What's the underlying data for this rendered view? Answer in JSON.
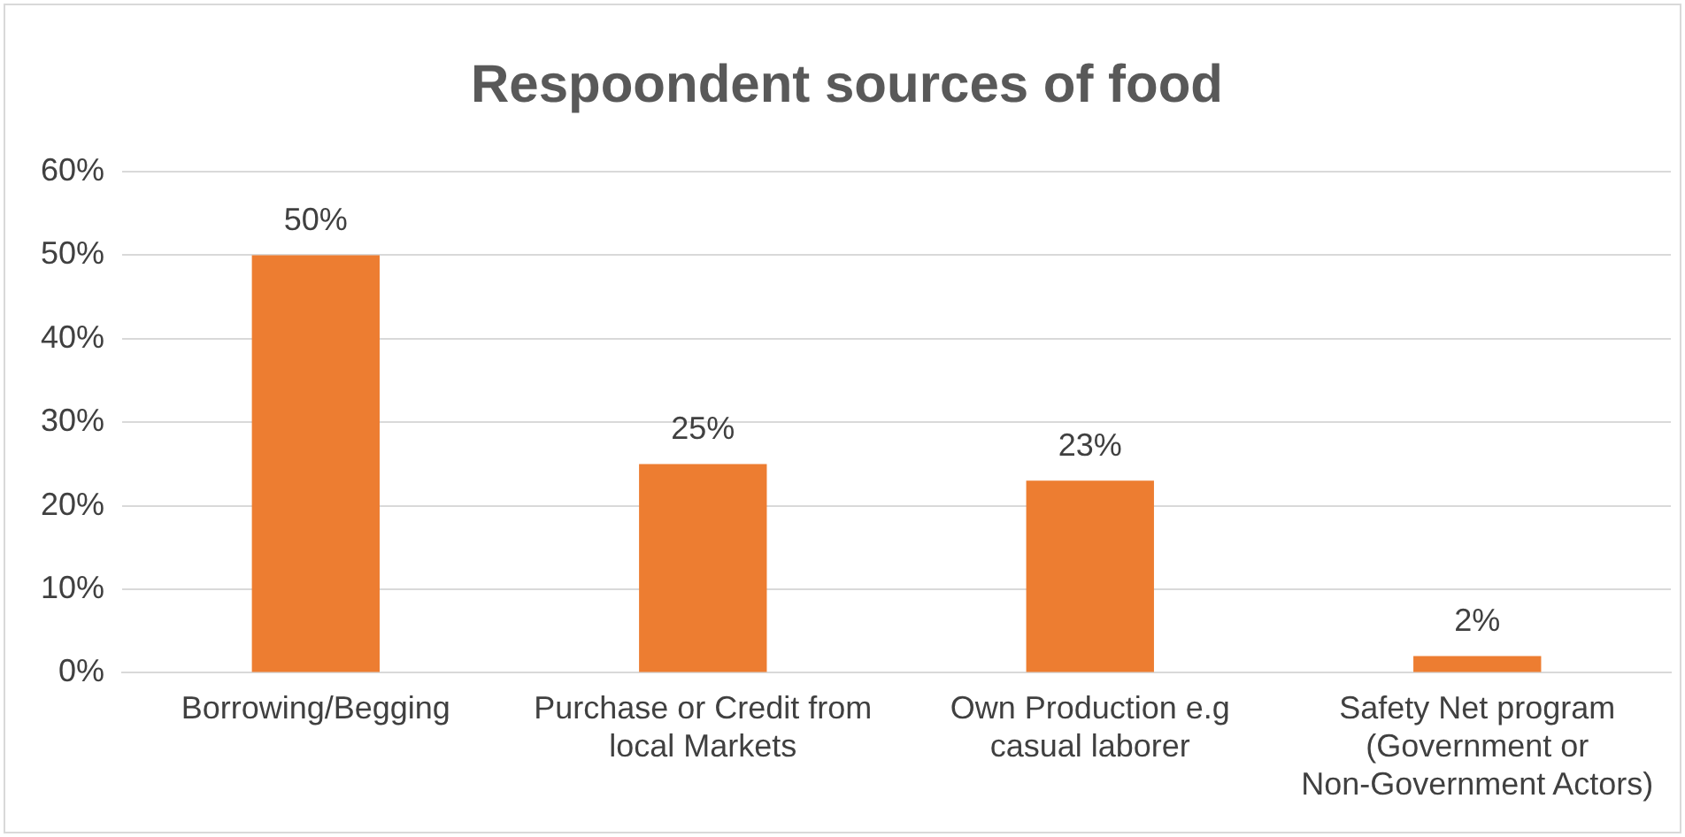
{
  "chart_data": {
    "type": "bar",
    "title": "Respoondent sources of food",
    "categories": [
      "Borrowing/Begging",
      "Purchase or Credit from local Markets",
      "Own Production e.g casual laborer",
      "Safety Net program (Government or Non-Government Actors)"
    ],
    "values": [
      50,
      25,
      23,
      2
    ],
    "color": "#ed7d31",
    "value_labels": [
      "50%",
      "25%",
      "23%",
      "2%"
    ],
    "ylim": [
      0,
      60
    ],
    "yticks": [
      {
        "value": 0,
        "label": "0%"
      },
      {
        "value": 10,
        "label": "10%"
      },
      {
        "value": 20,
        "label": "20%"
      },
      {
        "value": 30,
        "label": "30%"
      },
      {
        "value": 40,
        "label": "40%"
      },
      {
        "value": 50,
        "label": "50%"
      },
      {
        "value": 60,
        "label": "60%"
      }
    ],
    "grid": "y",
    "legend": false
  }
}
